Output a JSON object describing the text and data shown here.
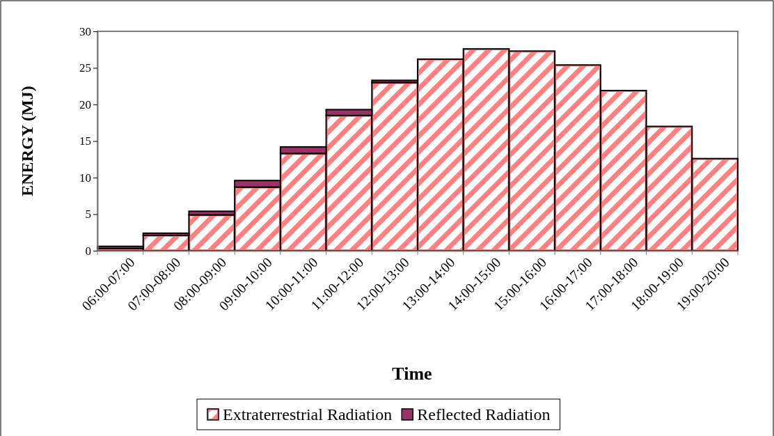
{
  "chart_data": {
    "type": "bar",
    "stacked": true,
    "xlabel": "Time",
    "ylabel": "ENERGY (MJ)",
    "categories": [
      "06:00-07:00",
      "07:00-08:00",
      "08:00-09:00",
      "09:00-10:00",
      "10:00-11:00",
      "11:00-12:00",
      "12:00-13:00",
      "13:00-14:00",
      "14:00-15:00",
      "15:00-16:00",
      "16:00-17:00",
      "17:00-18:00",
      "18:00-19:00",
      "19:00-20:00"
    ],
    "series": [
      {
        "name": "Extraterrestrial Radiation",
        "color": "#ff8080",
        "values": [
          0.3,
          2.1,
          4.9,
          8.7,
          13.3,
          18.5,
          23.0,
          26.2,
          27.6,
          27.3,
          25.4,
          21.9,
          17.0,
          12.6
        ]
      },
      {
        "name": "Reflected Radiation",
        "color": "#993366",
        "values": [
          0.3,
          0.3,
          0.5,
          0.9,
          0.9,
          0.8,
          0.3,
          0,
          0,
          0,
          0,
          0,
          0,
          0
        ]
      }
    ],
    "ylim": [
      0,
      30
    ],
    "yticks": [
      0,
      5,
      10,
      15,
      20,
      25,
      30
    ],
    "grid": false,
    "legend": "bottom"
  }
}
